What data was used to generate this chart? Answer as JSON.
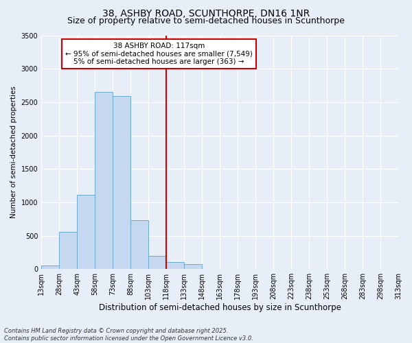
{
  "title1": "38, ASHBY ROAD, SCUNTHORPE, DN16 1NR",
  "title2": "Size of property relative to semi-detached houses in Scunthorpe",
  "xlabel": "Distribution of semi-detached houses by size in Scunthorpe",
  "ylabel": "Number of semi-detached properties",
  "annotation_title": "38 ASHBY ROAD: 117sqm",
  "annotation_line1": "← 95% of semi-detached houses are smaller (7,549)",
  "annotation_line2": "5% of semi-detached houses are larger (363) →",
  "footer1": "Contains HM Land Registry data © Crown copyright and database right 2025.",
  "footer2": "Contains public sector information licensed under the Open Government Licence v3.0.",
  "vline_x": 118,
  "bar_bins": [
    13,
    28,
    43,
    58,
    73,
    88,
    103,
    118,
    133,
    148,
    163,
    178,
    193,
    208,
    223,
    238,
    253,
    268,
    283,
    298,
    313
  ],
  "bar_values": [
    50,
    560,
    1110,
    2650,
    2590,
    730,
    200,
    110,
    70,
    0,
    0,
    0,
    0,
    0,
    0,
    0,
    0,
    0,
    0,
    0
  ],
  "bar_color": "#c5d8f0",
  "bar_edgecolor": "#6aaad4",
  "vline_color": "#cc0000",
  "box_facecolor": "white",
  "box_edgecolor": "#cc0000",
  "ylim": [
    0,
    3500
  ],
  "yticks": [
    0,
    500,
    1000,
    1500,
    2000,
    2500,
    3000,
    3500
  ],
  "bg_color": "#e8eef8",
  "grid_color": "white",
  "title1_fontsize": 10,
  "title2_fontsize": 9,
  "xlabel_fontsize": 8.5,
  "ylabel_fontsize": 7.5,
  "tick_fontsize": 7,
  "annotation_fontsize": 7.5,
  "footer_fontsize": 6
}
